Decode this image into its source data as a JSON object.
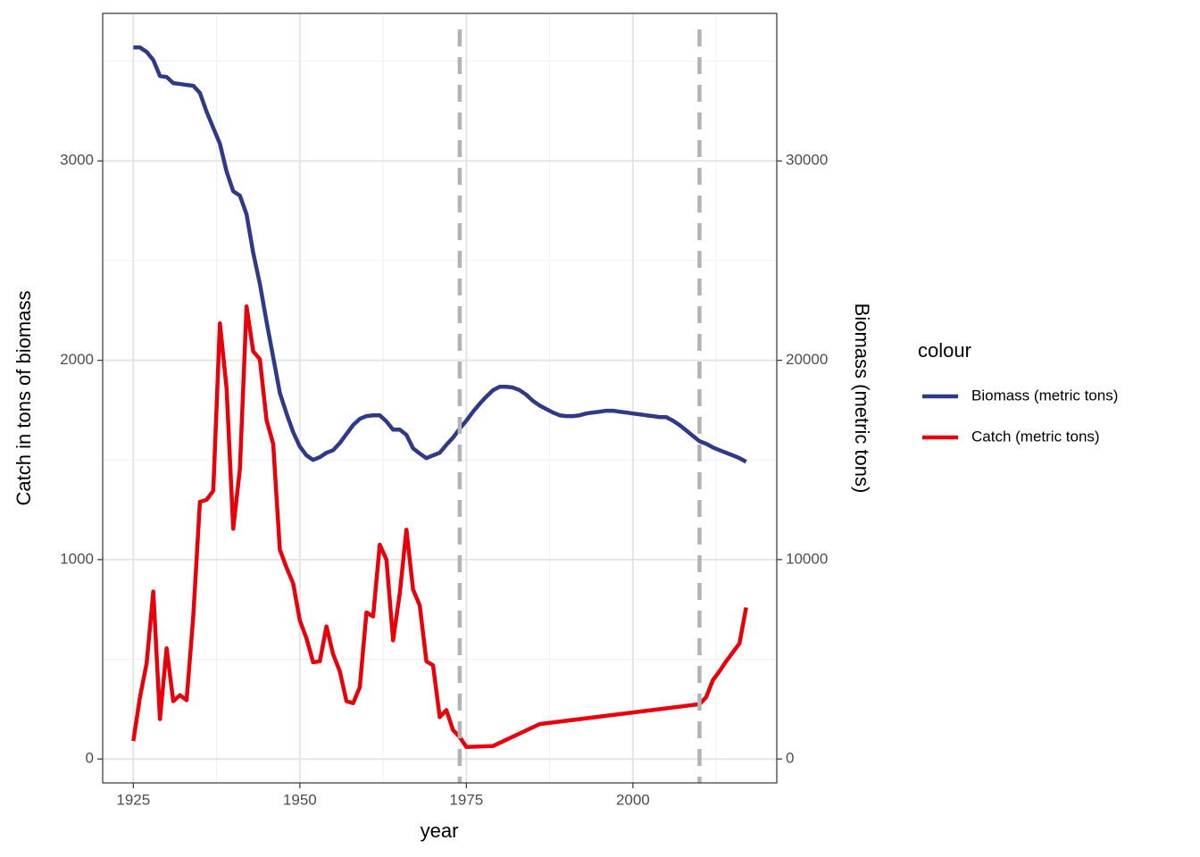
{
  "chart_data": {
    "type": "line",
    "x_label": "year",
    "y_label": "Catch in tons of biomass",
    "y2_label": "Biomass (metric tons)",
    "legend_title": "colour",
    "legend": "right",
    "grid": true,
    "xlim": [
      1920.4,
      2021.6
    ],
    "xticks": [
      1925,
      1950,
      1975,
      2000
    ],
    "xminor": [
      1937.5,
      1962.5,
      1987.5,
      2012.5
    ],
    "ylim": [
      -120,
      3740
    ],
    "yticks": [
      0,
      1000,
      2000,
      3000
    ],
    "yminor": [
      500,
      1500,
      2500,
      3500
    ],
    "y2lim": [
      -1200,
      37400
    ],
    "y2ticks": [
      0,
      10000,
      20000,
      30000
    ],
    "vlines": [
      1974,
      2010
    ],
    "vline_color": "#b3b3b3",
    "series": [
      {
        "name": "Biomass (metric tons)",
        "color": "#2e3a87",
        "axis": "y2",
        "x": [
          1925,
          1926,
          1927,
          1928,
          1929,
          1930,
          1931,
          1932,
          1933,
          1934,
          1935,
          1936,
          1937,
          1938,
          1939,
          1940,
          1941,
          1942,
          1943,
          1944,
          1945,
          1946,
          1947,
          1948,
          1949,
          1950,
          1951,
          1952,
          1953,
          1954,
          1955,
          1956,
          1957,
          1958,
          1959,
          1960,
          1961,
          1962,
          1963,
          1964,
          1965,
          1966,
          1967,
          1968,
          1969,
          1970,
          1971,
          1972,
          1973,
          1974,
          1975,
          1976,
          1977,
          1978,
          1979,
          1980,
          1981,
          1982,
          1983,
          1984,
          1985,
          1986,
          1987,
          1988,
          1989,
          1990,
          1991,
          1992,
          1993,
          1994,
          1995,
          1996,
          1997,
          1998,
          1999,
          2000,
          2001,
          2002,
          2003,
          2004,
          2005,
          2006,
          2007,
          2008,
          2009,
          2010,
          2011,
          2012,
          2013,
          2014,
          2015,
          2016,
          2017
        ],
        "values": [
          35690,
          35690,
          35470,
          35060,
          34260,
          34210,
          33900,
          33860,
          33810,
          33770,
          33410,
          32470,
          31660,
          30860,
          29470,
          28480,
          28260,
          27320,
          25390,
          23830,
          21940,
          20150,
          18360,
          17330,
          16390,
          15670,
          15230,
          15000,
          15140,
          15360,
          15490,
          15850,
          16300,
          16750,
          17060,
          17200,
          17240,
          17240,
          16930,
          16520,
          16520,
          16260,
          15580,
          15320,
          15090,
          15230,
          15360,
          15760,
          16120,
          16570,
          16970,
          17420,
          17820,
          18180,
          18500,
          18670,
          18670,
          18630,
          18500,
          18270,
          17960,
          17730,
          17550,
          17380,
          17240,
          17200,
          17200,
          17240,
          17330,
          17380,
          17420,
          17470,
          17470,
          17420,
          17380,
          17330,
          17290,
          17240,
          17200,
          17150,
          17150,
          16970,
          16750,
          16480,
          16210,
          15940,
          15810,
          15630,
          15490,
          15360,
          15230,
          15090,
          14910
        ]
      },
      {
        "name": "Catch (metric tons)",
        "color": "#e8000b",
        "x": [
          1925,
          1926,
          1927,
          1928,
          1929,
          1930,
          1931,
          1932,
          1933,
          1934,
          1935,
          1936,
          1937,
          1938,
          1939,
          1940,
          1941,
          1942,
          1943,
          1944,
          1945,
          1946,
          1947,
          1948,
          1949,
          1950,
          1951,
          1952,
          1953,
          1954,
          1955,
          1956,
          1957,
          1958,
          1959,
          1960,
          1961,
          1962,
          1963,
          1964,
          1965,
          1966,
          1967,
          1968,
          1969,
          1970,
          1971,
          1972,
          1973,
          1974,
          1975,
          1979,
          1986,
          2010,
          2011,
          2012,
          2013,
          2014,
          2015,
          2016,
          2017
        ],
        "values": [
          90,
          310,
          480,
          840,
          200,
          555,
          290,
          320,
          295,
          715,
          1290,
          1300,
          1345,
          2185,
          1860,
          1155,
          1455,
          2270,
          2045,
          2005,
          1700,
          1580,
          1050,
          960,
          880,
          695,
          605,
          485,
          490,
          665,
          525,
          440,
          290,
          280,
          360,
          735,
          715,
          1075,
          1000,
          595,
          830,
          1150,
          850,
          770,
          490,
          470,
          210,
          245,
          145,
          110,
          60,
          65,
          175,
          275,
          310,
          395,
          440,
          490,
          535,
          580,
          760
        ]
      }
    ]
  }
}
